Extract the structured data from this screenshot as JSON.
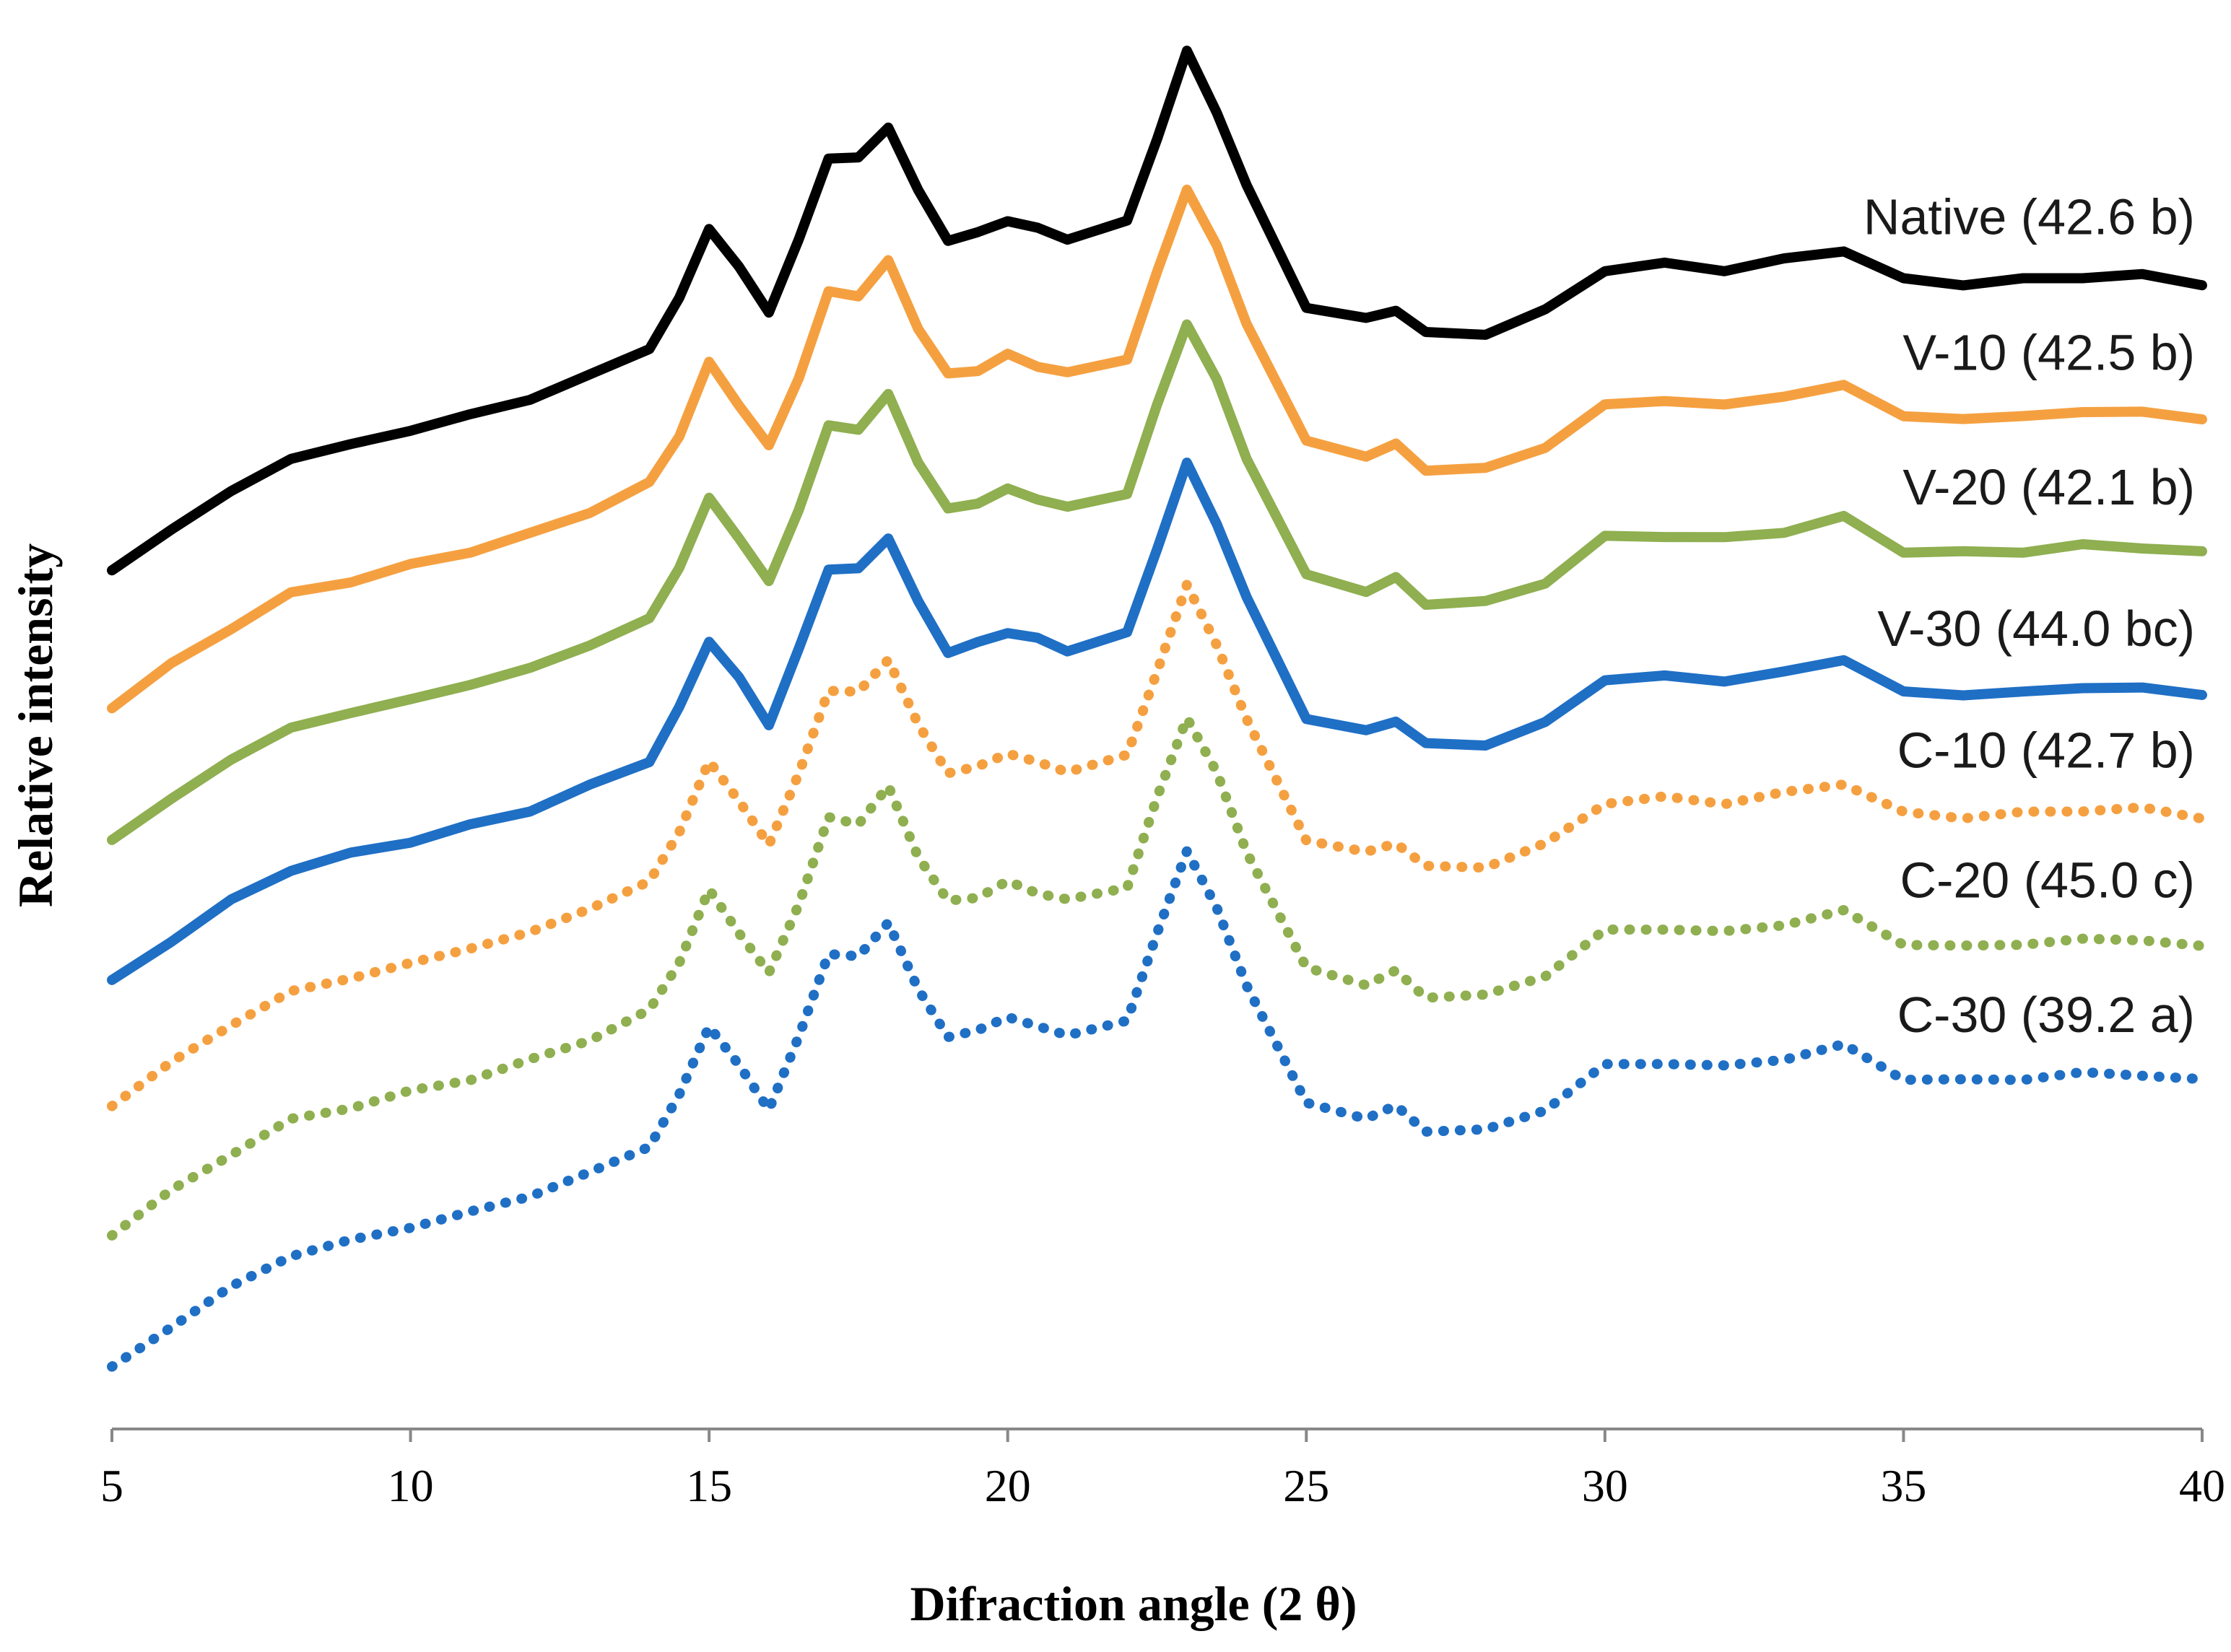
{
  "chart_data": {
    "type": "line",
    "title": "",
    "xlabel": "Difraction angle (2 θ)",
    "ylabel": "Relative intensity",
    "xlim": [
      5,
      40
    ],
    "ylim": [
      0,
      100
    ],
    "xticks": [
      5,
      10,
      15,
      20,
      25,
      30,
      35,
      40
    ],
    "x": [
      5,
      6,
      7,
      8,
      9,
      10,
      11,
      12,
      13,
      14,
      14.5,
      15,
      15.5,
      16,
      16.5,
      17,
      17.5,
      18,
      18.5,
      19,
      19.5,
      20,
      20.5,
      21,
      22,
      22.5,
      23,
      23.5,
      24,
      25,
      26,
      26.5,
      27,
      28,
      29,
      30,
      31,
      32,
      33,
      34,
      35,
      36,
      37,
      38,
      39,
      40
    ],
    "series": [
      {
        "name": "Native",
        "label": "Native (42.6 b)",
        "color": "#000000",
        "style": "solid",
        "values": [
          60.7,
          63.6,
          66.3,
          68.6,
          69.6,
          70.6,
          71.7,
          72.8,
          74.5,
          76.4,
          79.9,
          84.9,
          82.1,
          79.0,
          84.0,
          89.9,
          89.8,
          92.1,
          87.5,
          84.1,
          84.5,
          85.5,
          84.8,
          84.2,
          85.3,
          91.3,
          97.3,
          93.2,
          87.8,
          79.4,
          78.4,
          79.2,
          77.4,
          77.5,
          79.0,
          82.0,
          82.3,
          82.0,
          82.6,
          83.4,
          81.2,
          81.0,
          81.2,
          81.5,
          81.5,
          81.0
        ]
      },
      {
        "name": "V-10",
        "label": "V-10 (42.5 b)",
        "color": "#f5a040",
        "style": "solid",
        "values": [
          51.1,
          54.0,
          56.7,
          59.0,
          60.0,
          61.0,
          62.1,
          63.2,
          64.9,
          66.8,
          70.3,
          75.3,
          72.5,
          69.4,
          74.4,
          80.3,
          80.2,
          82.5,
          77.9,
          74.5,
          74.9,
          75.9,
          75.2,
          74.6,
          75.7,
          81.7,
          87.7,
          83.6,
          78.2,
          69.8,
          68.8,
          69.6,
          67.8,
          67.9,
          69.4,
          72.4,
          72.7,
          72.4,
          73.0,
          73.8,
          71.6,
          71.4,
          71.6,
          71.9,
          71.9,
          71.4
        ]
      },
      {
        "name": "V-20",
        "label": "V-20 (42.1 b)",
        "color": "#8faf50",
        "style": "solid",
        "values": [
          41.6,
          44.6,
          47.3,
          49.6,
          50.6,
          51.6,
          52.6,
          53.8,
          55.4,
          57.3,
          60.9,
          65.8,
          63.0,
          59.9,
          65.0,
          70.9,
          70.7,
          73.1,
          68.4,
          65.0,
          65.5,
          66.4,
          65.8,
          65.1,
          66.2,
          72.3,
          78.2,
          74.1,
          68.7,
          60.3,
          59.3,
          60.1,
          58.4,
          58.4,
          59.9,
          63.0,
          63.2,
          62.9,
          63.5,
          64.4,
          62.1,
          61.9,
          62.1,
          62.4,
          62.4,
          61.9
        ]
      },
      {
        "name": "V-30",
        "label": "V-30 (44.0 bc)",
        "color": "#1f6fc5",
        "style": "solid",
        "values": [
          31.6,
          34.6,
          37.3,
          39.6,
          40.6,
          41.6,
          42.6,
          43.8,
          45.4,
          47.3,
          50.9,
          55.8,
          53.0,
          49.9,
          55.0,
          60.9,
          60.7,
          63.1,
          58.4,
          55.0,
          55.5,
          56.4,
          55.8,
          55.1,
          56.2,
          62.3,
          68.2,
          64.1,
          58.7,
          50.3,
          49.3,
          50.1,
          48.4,
          48.4,
          49.9,
          53.0,
          53.2,
          52.9,
          53.5,
          54.4,
          52.1,
          51.9,
          52.1,
          52.4,
          52.4,
          51.9
        ]
      },
      {
        "name": "C-10",
        "label": "C-10 (42.7 b)",
        "color": "#f5a040",
        "style": "dotted",
        "values": [
          22.9,
          25.9,
          28.6,
          30.9,
          31.9,
          32.9,
          34.0,
          35.1,
          36.8,
          38.7,
          42.2,
          47.2,
          44.4,
          41.3,
          46.3,
          52.2,
          52.1,
          54.4,
          49.8,
          46.4,
          46.8,
          47.8,
          47.1,
          46.5,
          47.6,
          53.6,
          59.6,
          55.5,
          50.1,
          41.7,
          40.7,
          41.5,
          39.7,
          39.8,
          41.3,
          44.3,
          44.6,
          44.3,
          44.9,
          45.7,
          43.5,
          43.3,
          43.5,
          43.8,
          43.8,
          43.3
        ]
      },
      {
        "name": "C-20",
        "label": "C-20 (45.0 c)",
        "color": "#8faf50",
        "style": "dotted",
        "values": [
          13.8,
          16.8,
          19.5,
          21.8,
          22.8,
          23.8,
          24.8,
          26.0,
          27.6,
          29.5,
          33.1,
          38.0,
          35.2,
          32.1,
          37.2,
          43.1,
          42.9,
          45.3,
          40.6,
          37.2,
          37.7,
          38.6,
          38.0,
          37.3,
          38.4,
          44.5,
          50.4,
          46.3,
          40.9,
          32.5,
          31.5,
          32.3,
          30.6,
          30.6,
          32.1,
          35.2,
          35.4,
          35.1,
          35.7,
          36.6,
          34.3,
          34.1,
          34.3,
          34.6,
          34.6,
          34.1
        ]
      },
      {
        "name": "C-30",
        "label": "C-30 (39.2 a)",
        "color": "#1f6fc5",
        "style": "dotted",
        "values": [
          4.3,
          7.3,
          10.0,
          12.3,
          13.3,
          14.3,
          15.3,
          16.5,
          18.1,
          20.0,
          23.6,
          28.5,
          25.7,
          22.6,
          27.7,
          33.6,
          33.4,
          35.8,
          31.1,
          27.7,
          28.2,
          29.1,
          28.5,
          27.8,
          28.9,
          35.0,
          40.9,
          36.8,
          31.4,
          23.0,
          22.0,
          22.8,
          21.1,
          21.1,
          22.6,
          25.7,
          25.9,
          25.6,
          26.2,
          27.1,
          24.8,
          24.6,
          24.8,
          25.1,
          25.1,
          24.6
        ]
      }
    ]
  }
}
